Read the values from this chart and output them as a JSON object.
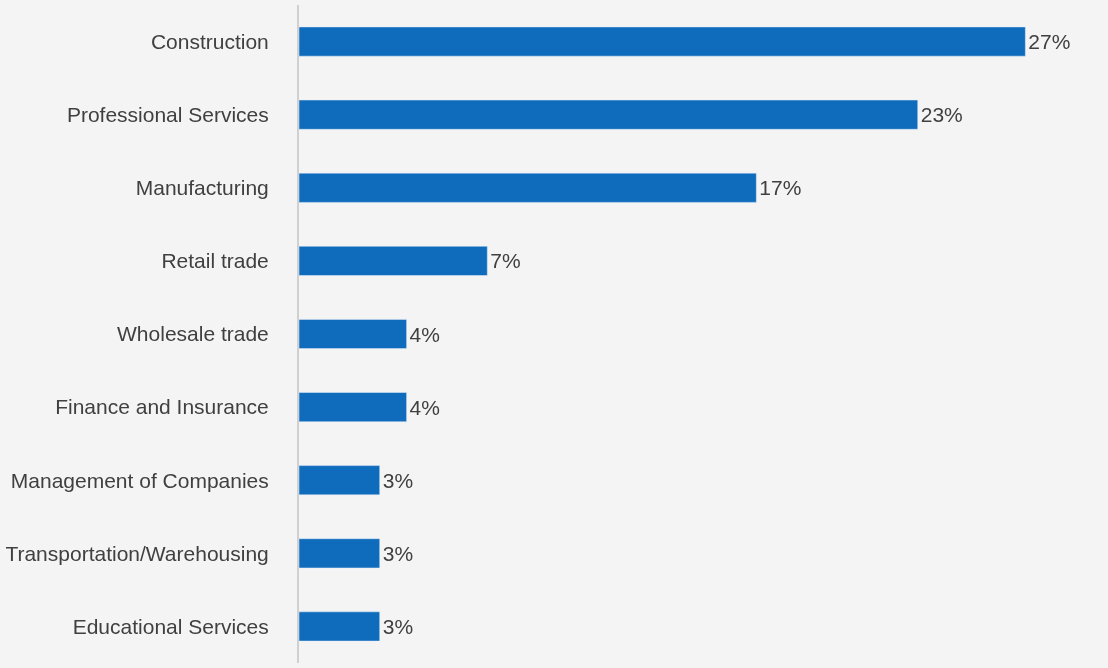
{
  "chart_data": {
    "type": "bar",
    "orientation": "horizontal",
    "categories": [
      "Construction",
      "Professional Services",
      "Manufacturing",
      "Retail trade",
      "Wholesale trade",
      "Finance and Insurance",
      "Management of Companies",
      "Transportation/Warehousing",
      "Educational Services"
    ],
    "values": [
      27,
      23,
      17,
      7,
      4,
      4,
      3,
      3,
      3
    ],
    "value_labels": [
      "27%",
      "23%",
      "17%",
      "7%",
      "4%",
      "4%",
      "3%",
      "3%",
      "3%"
    ],
    "color": "#0f6cbd",
    "grid": false,
    "legend": false,
    "tick_labels": "y"
  }
}
